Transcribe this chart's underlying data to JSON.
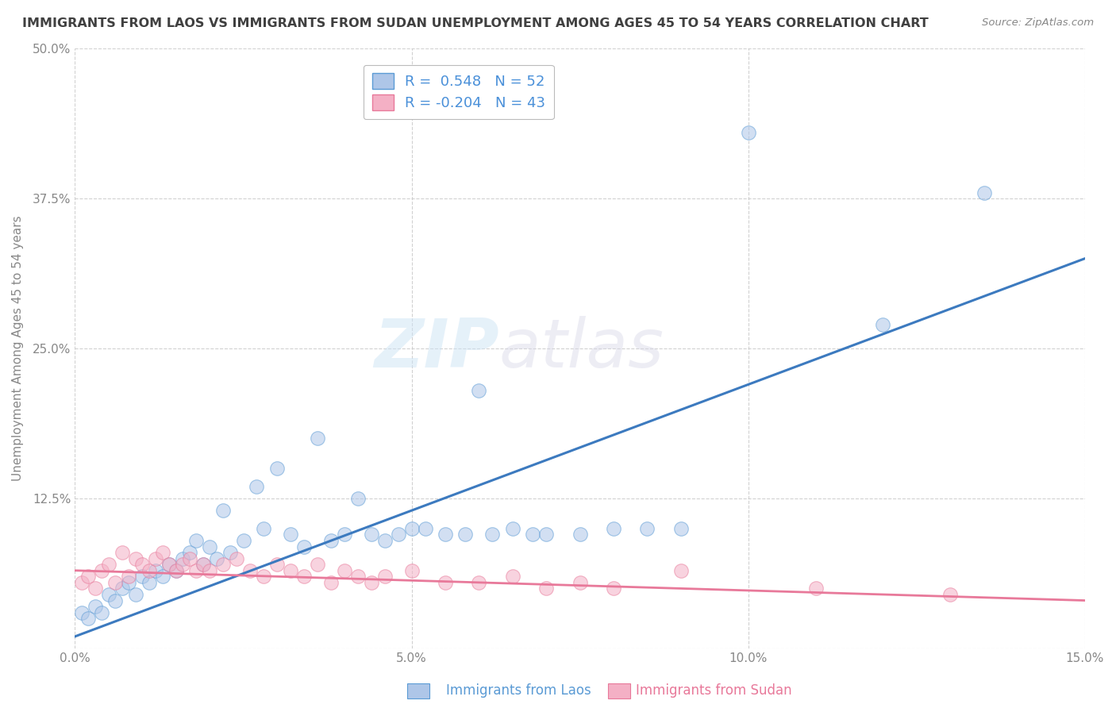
{
  "title": "IMMIGRANTS FROM LAOS VS IMMIGRANTS FROM SUDAN UNEMPLOYMENT AMONG AGES 45 TO 54 YEARS CORRELATION CHART",
  "source": "Source: ZipAtlas.com",
  "ylabel": "Unemployment Among Ages 45 to 54 years",
  "xlim": [
    0.0,
    0.15
  ],
  "ylim": [
    0.0,
    0.5
  ],
  "xticks": [
    0.0,
    0.05,
    0.1,
    0.15
  ],
  "xtick_labels": [
    "0.0%",
    "5.0%",
    "10.0%",
    "15.0%"
  ],
  "yticks": [
    0.0,
    0.125,
    0.25,
    0.375,
    0.5
  ],
  "ytick_labels": [
    "",
    "12.5%",
    "25.0%",
    "37.5%",
    "50.0%"
  ],
  "series1_label": "Immigrants from Laos",
  "series2_label": "Immigrants from Sudan",
  "series1_color": "#aec6e8",
  "series2_color": "#f4b0c5",
  "series1_edge_color": "#5b9bd5",
  "series2_edge_color": "#e8799a",
  "series1_line_color": "#3c7abf",
  "series2_line_color": "#e8799a",
  "series1_R": 0.548,
  "series1_N": 52,
  "series2_R": -0.204,
  "series2_N": 43,
  "watermark": "ZIPatlas",
  "background_color": "#ffffff",
  "grid_color": "#cccccc",
  "title_color": "#404040",
  "legend_text_color": "#4a90d9",
  "series1_x": [
    0.001,
    0.002,
    0.003,
    0.004,
    0.005,
    0.006,
    0.007,
    0.008,
    0.009,
    0.01,
    0.011,
    0.012,
    0.013,
    0.014,
    0.015,
    0.016,
    0.017,
    0.018,
    0.019,
    0.02,
    0.021,
    0.022,
    0.023,
    0.025,
    0.027,
    0.028,
    0.03,
    0.032,
    0.034,
    0.036,
    0.038,
    0.04,
    0.042,
    0.044,
    0.046,
    0.048,
    0.05,
    0.052,
    0.055,
    0.058,
    0.06,
    0.062,
    0.065,
    0.068,
    0.07,
    0.075,
    0.08,
    0.085,
    0.09,
    0.1,
    0.12,
    0.135
  ],
  "series1_y": [
    0.03,
    0.025,
    0.035,
    0.03,
    0.045,
    0.04,
    0.05,
    0.055,
    0.045,
    0.06,
    0.055,
    0.065,
    0.06,
    0.07,
    0.065,
    0.075,
    0.08,
    0.09,
    0.07,
    0.085,
    0.075,
    0.115,
    0.08,
    0.09,
    0.135,
    0.1,
    0.15,
    0.095,
    0.085,
    0.175,
    0.09,
    0.095,
    0.125,
    0.095,
    0.09,
    0.095,
    0.1,
    0.1,
    0.095,
    0.095,
    0.215,
    0.095,
    0.1,
    0.095,
    0.095,
    0.095,
    0.1,
    0.1,
    0.1,
    0.43,
    0.27,
    0.38
  ],
  "series2_x": [
    0.001,
    0.002,
    0.003,
    0.004,
    0.005,
    0.006,
    0.007,
    0.008,
    0.009,
    0.01,
    0.011,
    0.012,
    0.013,
    0.014,
    0.015,
    0.016,
    0.017,
    0.018,
    0.019,
    0.02,
    0.022,
    0.024,
    0.026,
    0.028,
    0.03,
    0.032,
    0.034,
    0.036,
    0.038,
    0.04,
    0.042,
    0.044,
    0.046,
    0.05,
    0.055,
    0.06,
    0.065,
    0.07,
    0.075,
    0.08,
    0.09,
    0.11,
    0.13
  ],
  "series2_y": [
    0.055,
    0.06,
    0.05,
    0.065,
    0.07,
    0.055,
    0.08,
    0.06,
    0.075,
    0.07,
    0.065,
    0.075,
    0.08,
    0.07,
    0.065,
    0.07,
    0.075,
    0.065,
    0.07,
    0.065,
    0.07,
    0.075,
    0.065,
    0.06,
    0.07,
    0.065,
    0.06,
    0.07,
    0.055,
    0.065,
    0.06,
    0.055,
    0.06,
    0.065,
    0.055,
    0.055,
    0.06,
    0.05,
    0.055,
    0.05,
    0.065,
    0.05,
    0.045
  ]
}
